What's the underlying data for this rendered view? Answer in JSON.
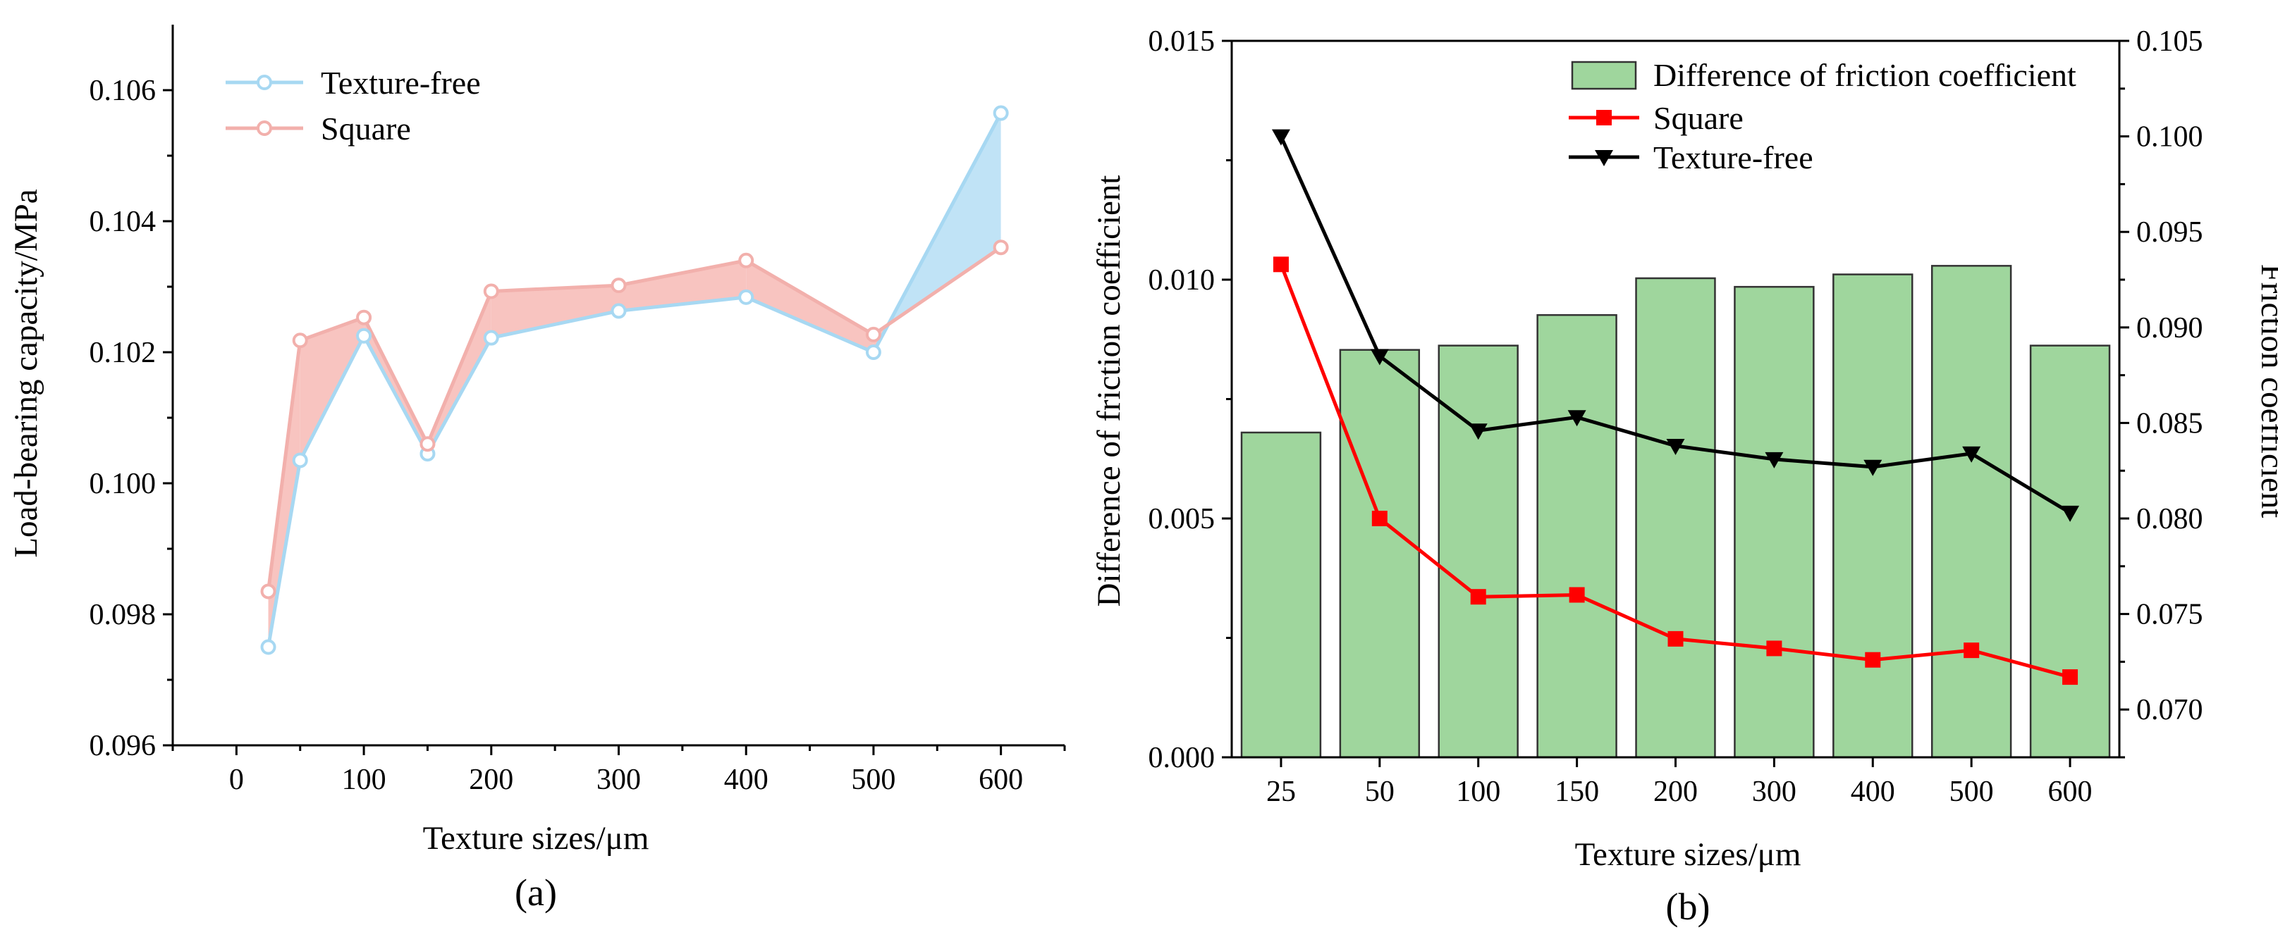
{
  "colors": {
    "texture_free_line": "#a7d8f2",
    "texture_free_marker": "#a7d8f2",
    "square_line": "#f2b0ac",
    "square_marker": "#f2b0ac",
    "fill_square_above": "#f8c4c0",
    "fill_texture_above": "#c0e3f6",
    "bar_fill": "#9fd69d",
    "bar_stroke": "#333333",
    "square_b": "#ff0000",
    "texture_free_b": "#000000"
  },
  "chart_data": [
    {
      "id": "a",
      "type": "line",
      "panel_label": "(a)",
      "xlabel": "Texture sizes/μm",
      "ylabel": "Load-bearing capacity/MPa",
      "xlim": [
        -50,
        650
      ],
      "ylim": [
        0.096,
        0.107
      ],
      "xticks": [
        0,
        100,
        200,
        300,
        400,
        500,
        600
      ],
      "xtick_labels": [
        "0",
        "100",
        "200",
        "300",
        "400",
        "500",
        "600"
      ],
      "yticks": [
        0.096,
        0.098,
        0.1,
        0.102,
        0.104,
        0.106
      ],
      "ytick_labels": [
        "0.096",
        "0.098",
        "0.100",
        "0.102",
        "0.104",
        "0.106"
      ],
      "x": [
        25,
        50,
        100,
        150,
        200,
        300,
        400,
        500,
        600
      ],
      "series": [
        {
          "name": "Texture-free",
          "values": [
            0.0975,
            0.10035,
            0.10225,
            0.10045,
            0.10222,
            0.10263,
            0.10284,
            0.102,
            0.10565
          ]
        },
        {
          "name": "Square",
          "values": [
            0.09835,
            0.10218,
            0.10253,
            0.1006,
            0.10293,
            0.10302,
            0.1034,
            0.10227,
            0.1036
          ]
        }
      ],
      "legend": [
        "Texture-free",
        "Square"
      ],
      "legend_position": "top-left",
      "fill_between": true
    },
    {
      "id": "b",
      "type": "bar+line",
      "panel_label": "(b)",
      "xlabel": "Texture sizes/μm",
      "ylabel_left": "Difference of friction coefficient",
      "ylabel_right": "Friction coefficient",
      "categories": [
        "25",
        "50",
        "100",
        "150",
        "200",
        "300",
        "400",
        "500",
        "600"
      ],
      "ylim_left": [
        0,
        0.015
      ],
      "yticks_left": [
        0,
        0.005,
        0.01,
        0.015
      ],
      "ytick_labels_left": [
        "0.000",
        "0.005",
        "0.010",
        "0.015"
      ],
      "ylim_right": [
        0.0675,
        0.105
      ],
      "yticks_right": [
        0.07,
        0.075,
        0.08,
        0.085,
        0.09,
        0.095,
        0.1,
        0.105
      ],
      "ytick_labels_right": [
        "0.070",
        "0.075",
        "0.080",
        "0.085",
        "0.090",
        "0.095",
        "0.100",
        "0.105"
      ],
      "bars": {
        "name": "Difference of friction coefficient",
        "axis": "left",
        "values": [
          0.0068,
          0.00853,
          0.00862,
          0.00926,
          0.01003,
          0.00985,
          0.01011,
          0.01029,
          0.00862
        ]
      },
      "series": [
        {
          "name": "Square",
          "axis": "right",
          "marker": "square",
          "values": [
            0.0933,
            0.08,
            0.0759,
            0.076,
            0.0737,
            0.0732,
            0.0726,
            0.0731,
            0.0717
          ]
        },
        {
          "name": "Texture-free",
          "axis": "right",
          "marker": "triangle-down",
          "values": [
            0.1,
            0.0885,
            0.0846,
            0.0853,
            0.0838,
            0.0831,
            0.0827,
            0.0834,
            0.0803
          ]
        }
      ],
      "legend": [
        "Difference of friction coefficient",
        "Square",
        "Texture-free"
      ],
      "legend_position": "top-right"
    }
  ]
}
